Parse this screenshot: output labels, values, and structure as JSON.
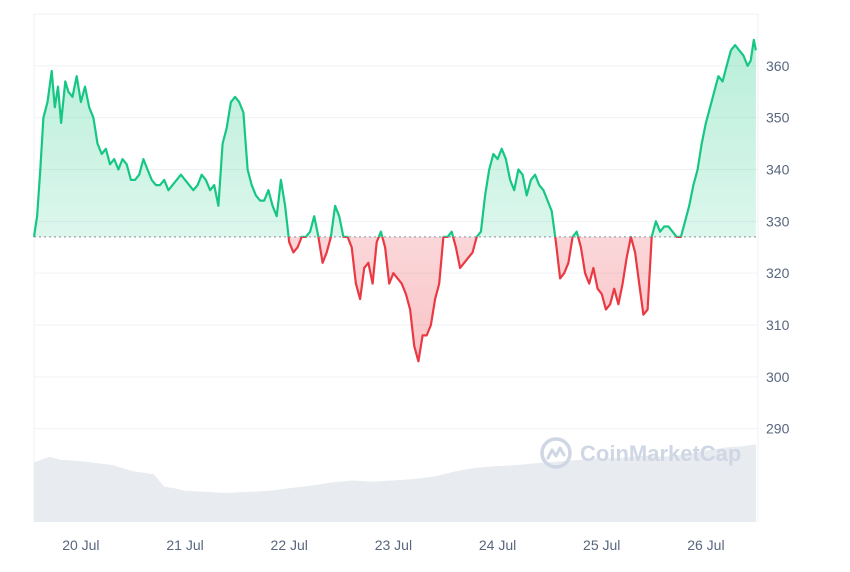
{
  "watermark": {
    "text": "CoinMarketCap",
    "icon": "coinmarketcap-logo-icon"
  },
  "colors": {
    "up_line": "#16c784",
    "up_fill": "#16c784",
    "down_line": "#ea3943",
    "down_fill": "#ea3943",
    "grid": "#eff2f5",
    "volume": "#e8ebef",
    "baseline": "#9aa3b1",
    "tick_text": "#58667e"
  },
  "chart_data": {
    "type": "area",
    "title": "",
    "xlabel": "",
    "ylabel": "",
    "ylim": [
      272,
      370
    ],
    "y_ticks": [
      290,
      300,
      310,
      320,
      330,
      340,
      350,
      360
    ],
    "x_domain": [
      19.55,
      26.5
    ],
    "x_ticks": [
      {
        "x": 20,
        "label": "20 Jul"
      },
      {
        "x": 21,
        "label": "21 Jul"
      },
      {
        "x": 22,
        "label": "22 Jul"
      },
      {
        "x": 23,
        "label": "23 Jul"
      },
      {
        "x": 24,
        "label": "24 Jul"
      },
      {
        "x": 25,
        "label": "25 Jul"
      },
      {
        "x": 26,
        "label": "26 Jul"
      }
    ],
    "baseline_price": 327,
    "grid": true,
    "price_series": {
      "x": [
        19.55,
        19.58,
        19.61,
        19.64,
        19.68,
        19.72,
        19.75,
        19.78,
        19.81,
        19.85,
        19.88,
        19.92,
        19.96,
        20.0,
        20.04,
        20.08,
        20.12,
        20.16,
        20.2,
        20.24,
        20.28,
        20.32,
        20.36,
        20.4,
        20.44,
        20.48,
        20.52,
        20.56,
        20.6,
        20.64,
        20.68,
        20.72,
        20.76,
        20.8,
        20.84,
        20.88,
        20.92,
        20.96,
        21.0,
        21.04,
        21.08,
        21.12,
        21.16,
        21.2,
        21.24,
        21.28,
        21.32,
        21.36,
        21.4,
        21.44,
        21.48,
        21.52,
        21.56,
        21.6,
        21.64,
        21.68,
        21.72,
        21.76,
        21.8,
        21.84,
        21.88,
        21.92,
        21.96,
        22.0,
        22.04,
        22.08,
        22.12,
        22.16,
        22.2,
        22.24,
        22.28,
        22.32,
        22.36,
        22.4,
        22.44,
        22.48,
        22.52,
        22.56,
        22.6,
        22.64,
        22.68,
        22.72,
        22.76,
        22.8,
        22.84,
        22.88,
        22.92,
        22.96,
        23.0,
        23.04,
        23.08,
        23.12,
        23.16,
        23.2,
        23.24,
        23.28,
        23.32,
        23.36,
        23.4,
        23.44,
        23.48,
        23.52,
        23.56,
        23.6,
        23.64,
        23.68,
        23.72,
        23.76,
        23.8,
        23.84,
        23.88,
        23.92,
        23.96,
        24.0,
        24.04,
        24.08,
        24.12,
        24.16,
        24.2,
        24.24,
        24.28,
        24.32,
        24.36,
        24.4,
        24.44,
        24.48,
        24.52,
        24.56,
        24.6,
        24.64,
        24.68,
        24.72,
        24.76,
        24.8,
        24.84,
        24.88,
        24.92,
        24.96,
        25.0,
        25.04,
        25.08,
        25.12,
        25.16,
        25.2,
        25.24,
        25.28,
        25.32,
        25.36,
        25.4,
        25.44,
        25.48,
        25.52,
        25.56,
        25.6,
        25.64,
        25.68,
        25.72,
        25.76,
        25.8,
        25.84,
        25.88,
        25.92,
        25.96,
        26.0,
        26.04,
        26.08,
        26.12,
        26.16,
        26.2,
        26.24,
        26.28,
        26.32,
        26.36,
        26.4,
        26.43,
        26.46,
        26.48
      ],
      "y": [
        327,
        331,
        340,
        350,
        353,
        359,
        352,
        356,
        349,
        357,
        355,
        354,
        358,
        353,
        356,
        352,
        350,
        345,
        343,
        344,
        341,
        342,
        340,
        342,
        341,
        338,
        338,
        339,
        342,
        340,
        338,
        337,
        337,
        338,
        336,
        337,
        338,
        339,
        338,
        337,
        336,
        337,
        339,
        338,
        336,
        337,
        333,
        345,
        348,
        353,
        354,
        353,
        351,
        340,
        337,
        335,
        334,
        334,
        336,
        333,
        331,
        338,
        333,
        326,
        324,
        325,
        327,
        327,
        328,
        331,
        327,
        322,
        324,
        327,
        333,
        331,
        327,
        327,
        325,
        318,
        315,
        321,
        322,
        318,
        326,
        328,
        325,
        318,
        320,
        319,
        318,
        316,
        313,
        306,
        303,
        308,
        308,
        310,
        315,
        318,
        327,
        327,
        328,
        325,
        321,
        322,
        323,
        324,
        327,
        328,
        335,
        340,
        343,
        342,
        344,
        342,
        338,
        336,
        340,
        339,
        335,
        338,
        339,
        337,
        336,
        334,
        332,
        326,
        319,
        320,
        322,
        327,
        328,
        325,
        320,
        318,
        321,
        317,
        316,
        313,
        314,
        317,
        314,
        318,
        323,
        327,
        324,
        318,
        312,
        313,
        327,
        330,
        328,
        329,
        329,
        328,
        327,
        327,
        330,
        333,
        337,
        340,
        345,
        349,
        352,
        355,
        358,
        357,
        360,
        363,
        364,
        363,
        362,
        360,
        361,
        365,
        363
      ]
    },
    "volume_series": {
      "x": [
        19.55,
        19.7,
        19.8,
        19.95,
        20.1,
        20.3,
        20.5,
        20.7,
        20.8,
        20.9,
        21.0,
        21.2,
        21.4,
        21.6,
        21.8,
        22.0,
        22.2,
        22.4,
        22.6,
        22.8,
        23.0,
        23.2,
        23.4,
        23.6,
        23.8,
        24.0,
        24.2,
        24.4,
        24.6,
        24.8,
        25.0,
        25.2,
        25.4,
        25.6,
        25.8,
        26.0,
        26.2,
        26.35,
        26.48
      ],
      "y": [
        283.5,
        284.6,
        284.0,
        283.8,
        283.5,
        283.0,
        281.8,
        281.2,
        278.8,
        278.5,
        278.0,
        277.8,
        277.6,
        277.8,
        278.0,
        278.5,
        279.0,
        279.6,
        280.0,
        279.8,
        280.0,
        280.3,
        280.8,
        281.8,
        282.5,
        282.8,
        283.0,
        283.4,
        283.7,
        284.0,
        284.3,
        284.4,
        284.8,
        284.6,
        285.0,
        285.8,
        286.4,
        286.6,
        287.0
      ]
    }
  }
}
